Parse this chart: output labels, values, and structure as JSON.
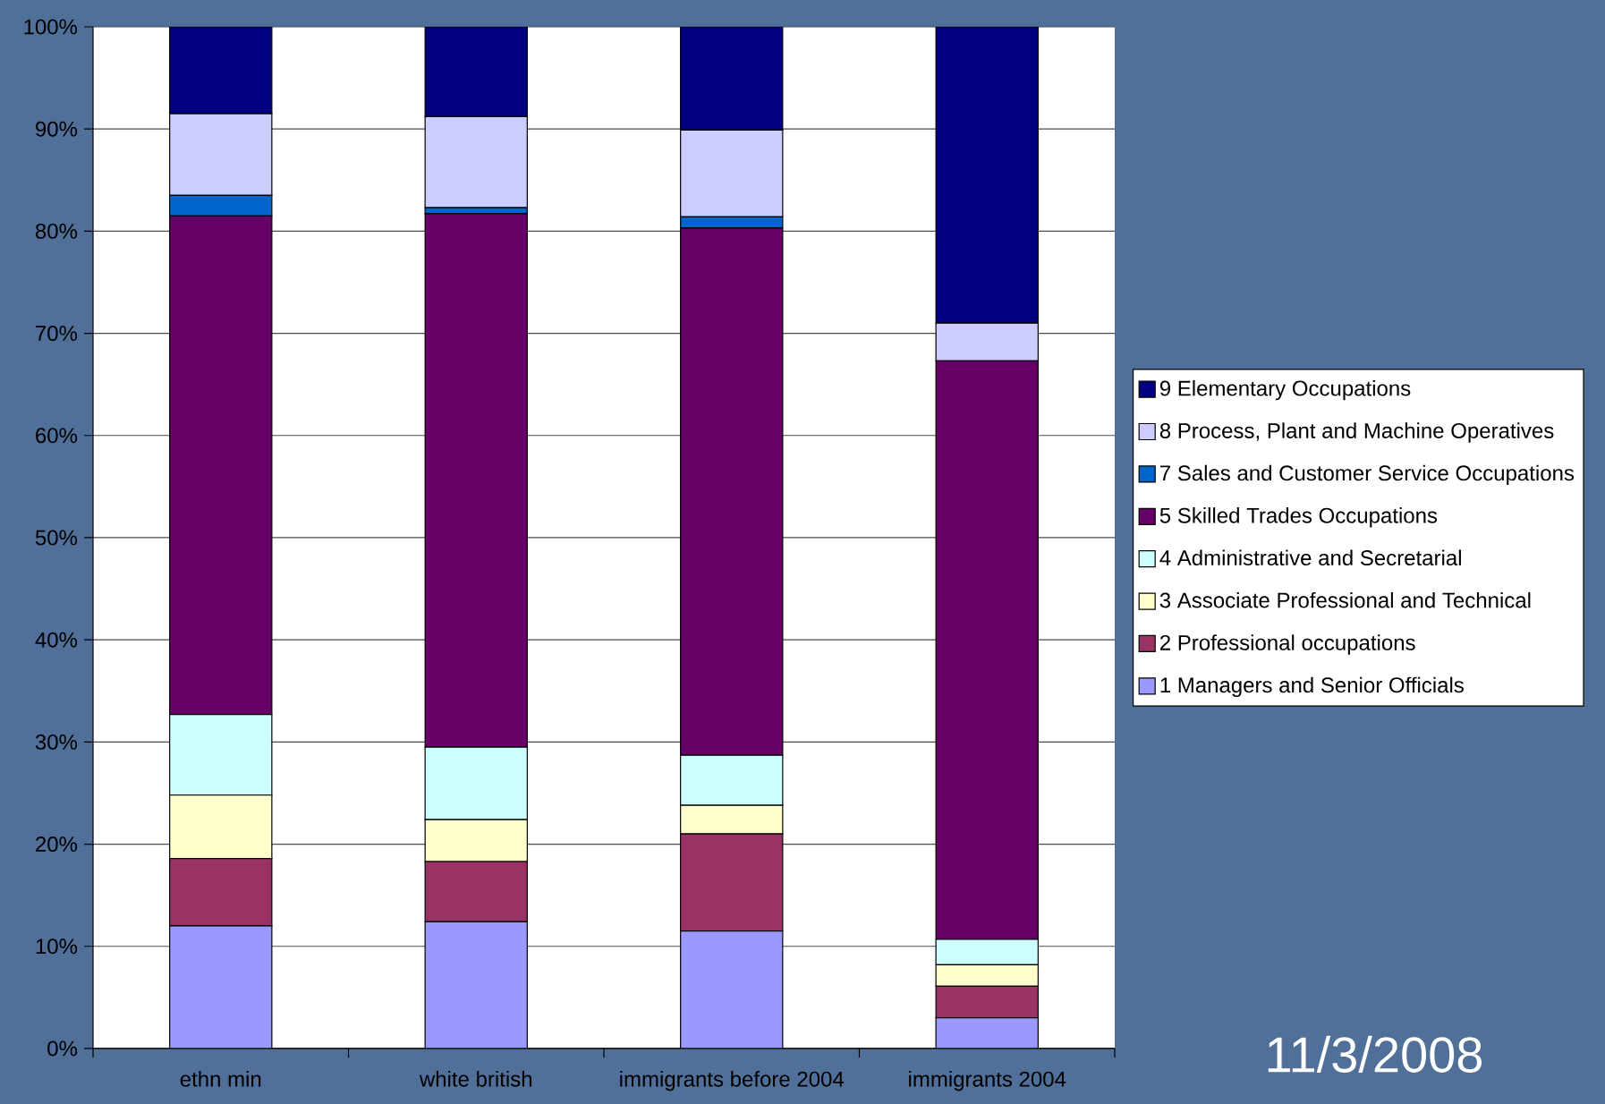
{
  "chart_data": {
    "type": "bar",
    "stacked": true,
    "categories": [
      "ethn min",
      "white british",
      "immigrants before 2004",
      "immigrants 2004"
    ],
    "series": [
      {
        "name": "1 Managers and Senior Officials",
        "color": "#9999ff",
        "values": [
          12.0,
          12.4,
          11.5,
          3.0
        ]
      },
      {
        "name": "2 Professional occupations",
        "color": "#993366",
        "values": [
          6.6,
          5.9,
          9.5,
          3.1
        ]
      },
      {
        "name": "3 Associate Professional and Technical",
        "color": "#ffffcc",
        "values": [
          6.2,
          4.1,
          2.8,
          2.1
        ]
      },
      {
        "name": "4 Administrative and Secretarial",
        "color": "#ccffff",
        "values": [
          7.9,
          7.1,
          4.9,
          2.5
        ]
      },
      {
        "name": "5 Skilled Trades Occupations",
        "color": "#660066",
        "values": [
          48.8,
          52.2,
          51.6,
          56.6
        ]
      },
      {
        "name": "7 Sales and Customer Service Occupations",
        "color": "#0066cc",
        "values": [
          2.0,
          0.6,
          1.1,
          0
        ]
      },
      {
        "name": "8 Process, Plant and Machine Operatives",
        "color": "#ccccff",
        "values": [
          8.0,
          8.9,
          8.5,
          3.7
        ]
      },
      {
        "name": "9 Elementary Occupations",
        "color": "#000080",
        "values": [
          8.5,
          8.8,
          10.1,
          29.0
        ]
      }
    ],
    "ylim": [
      0,
      100
    ],
    "yticks": [
      {
        "value": 0,
        "label": "0%"
      },
      {
        "value": 10,
        "label": "10%"
      },
      {
        "value": 20,
        "label": "20%"
      },
      {
        "value": 30,
        "label": "30%"
      },
      {
        "value": 40,
        "label": "40%"
      },
      {
        "value": 50,
        "label": "50%"
      },
      {
        "value": 60,
        "label": "60%"
      },
      {
        "value": 70,
        "label": "70%"
      },
      {
        "value": 80,
        "label": "80%"
      },
      {
        "value": 90,
        "label": "90%"
      },
      {
        "value": 100,
        "label": "100%"
      }
    ],
    "grid": "y",
    "legend": "right",
    "annotations": [
      "11/3/2008"
    ]
  }
}
